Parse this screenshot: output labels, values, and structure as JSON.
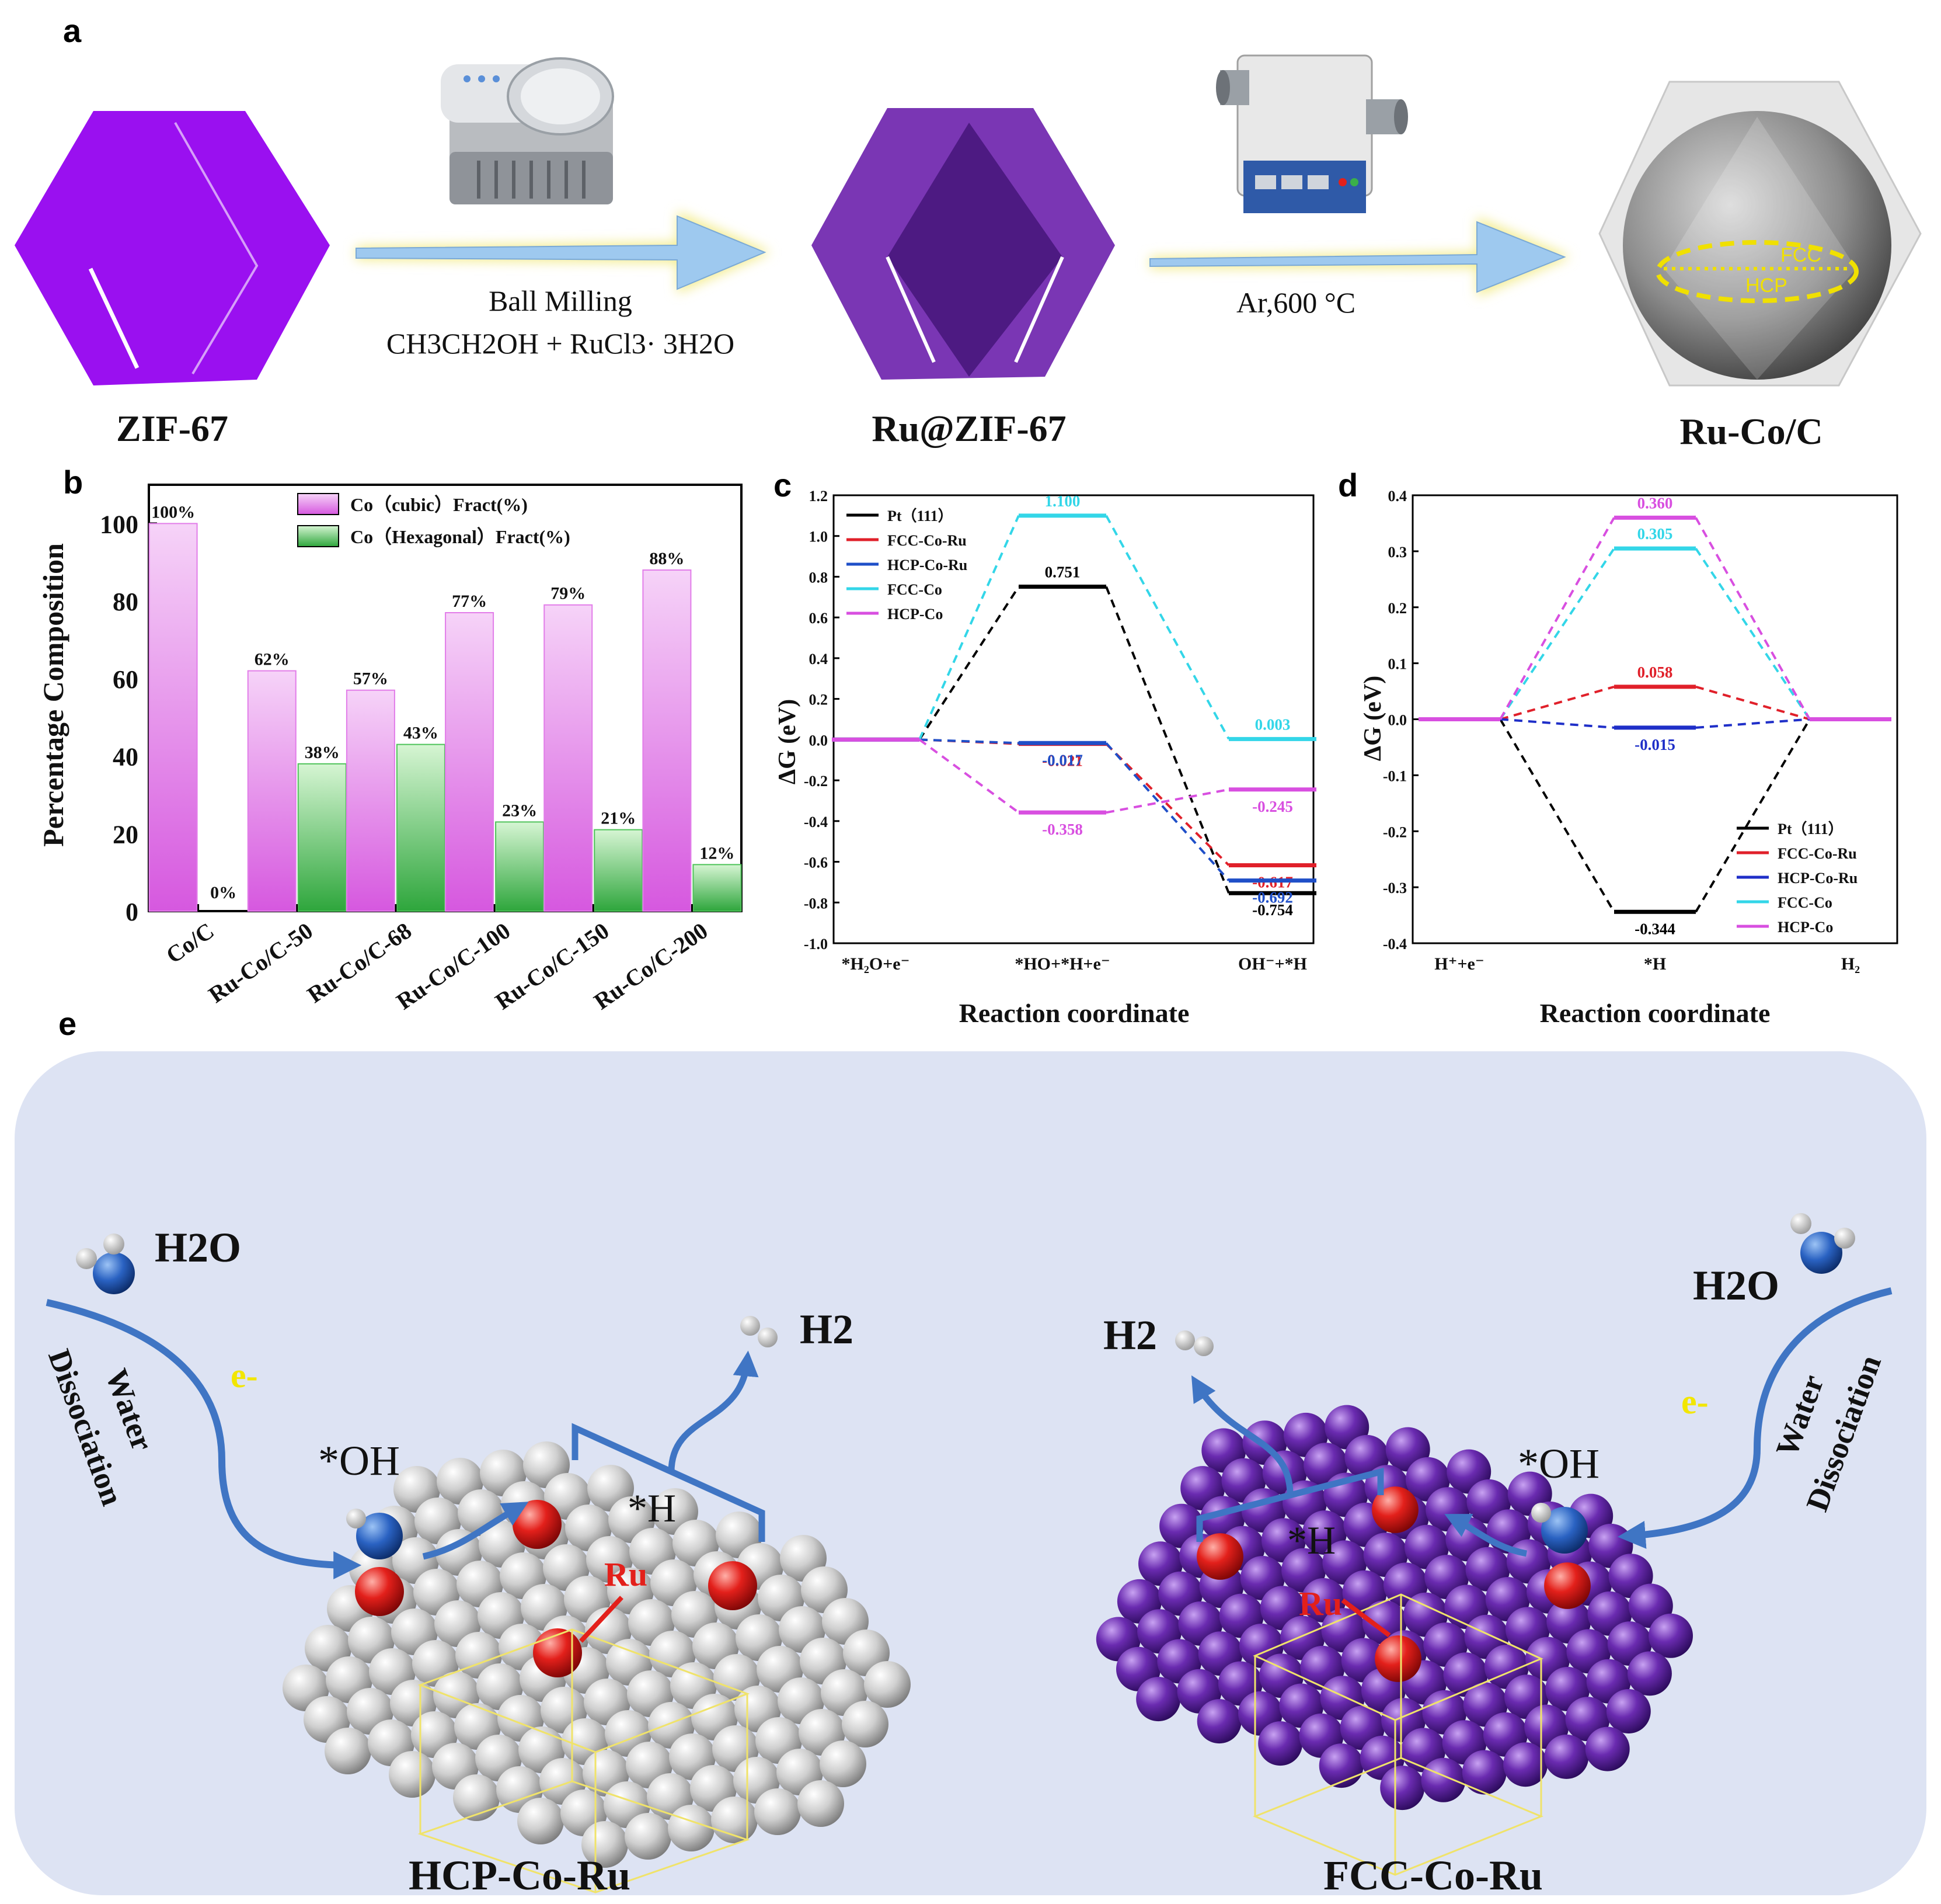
{
  "panel_labels": [
    "a",
    "b",
    "c",
    "d",
    "e"
  ],
  "panel_a": {
    "materials": [
      "ZIF-67",
      "Ru@ZIF-67",
      "Ru-Co/C"
    ],
    "step1_text_line1": "Ball Milling",
    "step1_text_line2": "CH3CH2OH + RuCl3· 3H2O",
    "step2_text": "Ar,600 °C",
    "phase_labels": [
      "FCC",
      "HCP"
    ],
    "colors": {
      "zif": "#9a10f0",
      "ru_zif": "#6f2fa8",
      "arrow": "#9ec9ef",
      "arrow_glow": "#f3ec8e"
    }
  },
  "chart_data": [
    {
      "id": "b",
      "type": "bar",
      "ylabel": "Percentage Composition",
      "ylim": [
        0,
        110
      ],
      "yticks": [
        0,
        20,
        40,
        60,
        80,
        100
      ],
      "categories": [
        "Co/C",
        "Ru-Co/C-50",
        "Ru-Co/C-68",
        "Ru-Co/C-100",
        "Ru-Co/C-150",
        "Ru-Co/C-200"
      ],
      "series": [
        {
          "name": "Co（cubic）Fract(%)",
          "values": [
            100,
            62,
            57,
            77,
            79,
            88
          ],
          "labels": [
            "100%",
            "62%",
            "57%",
            "77%",
            "79%",
            "88%"
          ],
          "color": "#e27de9"
        },
        {
          "name": "Co（Hexagonal）Fract(%)",
          "values": [
            0,
            38,
            43,
            23,
            21,
            12
          ],
          "labels": [
            "0%",
            "38%",
            "43%",
            "23%",
            "21%",
            "12%"
          ],
          "color": "#4fc35a"
        }
      ],
      "legend": "top"
    },
    {
      "id": "c",
      "type": "line",
      "xlabel": "Reaction coordinate",
      "ylabel": "ΔG (eV)",
      "ylim": [
        -1.0,
        1.2
      ],
      "yticks": [
        -1.0,
        -0.8,
        -0.6,
        -0.4,
        -0.2,
        0.0,
        0.2,
        0.4,
        0.6,
        0.8,
        1.0,
        1.2
      ],
      "ytick_labels": [
        "-1.0",
        "-0.8",
        "-0.6",
        "-0.4",
        "-0.2",
        "0.0",
        "0.2",
        "0.4",
        "0.6",
        "0.8",
        "1.0",
        "1.2"
      ],
      "states": [
        "*H2O+e-",
        "*HO+*H+e-",
        "OH-+*H"
      ],
      "state_labels": [
        "*H₂O+e⁻",
        "*HO+*H+e⁻",
        "OH⁻+*H"
      ],
      "series": [
        {
          "name": "Pt（111）",
          "color": "#000000",
          "values": [
            0,
            0.751,
            -0.754
          ],
          "labels": [
            "",
            "0.751",
            "-0.754"
          ]
        },
        {
          "name": "FCC-Co-Ru",
          "color": "#e0202a",
          "values": [
            0,
            -0.021,
            -0.617
          ],
          "labels": [
            "",
            "-0.021",
            "-0.617"
          ]
        },
        {
          "name": "HCP-Co-Ru",
          "color": "#1f4fc8",
          "values": [
            0,
            -0.017,
            -0.692
          ],
          "labels": [
            "",
            "-0.017",
            "-0.692"
          ]
        },
        {
          "name": "FCC-Co",
          "color": "#33d6e8",
          "values": [
            0,
            1.1,
            0.003
          ],
          "labels": [
            "",
            "1.100",
            "0.003"
          ]
        },
        {
          "name": "HCP-Co",
          "color": "#d84fe0",
          "values": [
            0,
            -0.358,
            -0.245
          ],
          "labels": [
            "",
            "-0.358",
            "-0.245"
          ]
        }
      ],
      "legend": "top-left"
    },
    {
      "id": "d",
      "type": "line",
      "xlabel": "Reaction coordinate",
      "ylabel": "ΔG (eV)",
      "ylim": [
        -0.4,
        0.4
      ],
      "yticks": [
        -0.4,
        -0.3,
        -0.2,
        -0.1,
        0.0,
        0.1,
        0.2,
        0.3,
        0.4
      ],
      "ytick_labels": [
        "-0.4",
        "-0.3",
        "-0.2",
        "-0.1",
        "0.0",
        "0.1",
        "0.2",
        "0.3",
        "0.4"
      ],
      "states": [
        "H++e-",
        "*H",
        "H2"
      ],
      "state_labels": [
        "H⁺+e⁻",
        "*H",
        "H₂"
      ],
      "series": [
        {
          "name": "Pt（111）",
          "color": "#000000",
          "values": [
            0,
            -0.344,
            0
          ],
          "labels": [
            "",
            "-0.344",
            ""
          ]
        },
        {
          "name": "FCC-Co-Ru",
          "color": "#e0202a",
          "values": [
            0,
            0.058,
            0
          ],
          "labels": [
            "",
            "0.058",
            ""
          ]
        },
        {
          "name": "HCP-Co-Ru",
          "color": "#1f2fc8",
          "values": [
            0,
            -0.015,
            0
          ],
          "labels": [
            "",
            "-0.015",
            ""
          ]
        },
        {
          "name": "FCC-Co",
          "color": "#33d6e8",
          "values": [
            0,
            0.305,
            0
          ],
          "labels": [
            "",
            "0.305",
            ""
          ]
        },
        {
          "name": "HCP-Co",
          "color": "#d84fe0",
          "values": [
            0,
            0.36,
            0
          ],
          "labels": [
            "",
            "0.360",
            ""
          ]
        }
      ],
      "legend": "bottom-right"
    }
  ],
  "panel_e": {
    "left_title": "HCP-Co-Ru",
    "right_title": "FCC-Co-Ru",
    "h2o": "H2O",
    "h2": "H2",
    "oh": "*OH",
    "h": "*H",
    "ru": "Ru",
    "electron": "e-",
    "water_dissociation": [
      "Water",
      "Dissociation"
    ],
    "colors": {
      "background": "#dde3f3",
      "hcp_atom": "#c9c9c9",
      "fcc_atom": "#6a2bb0",
      "ru_atom": "#e3201b",
      "arrow": "#3f75c4"
    }
  }
}
